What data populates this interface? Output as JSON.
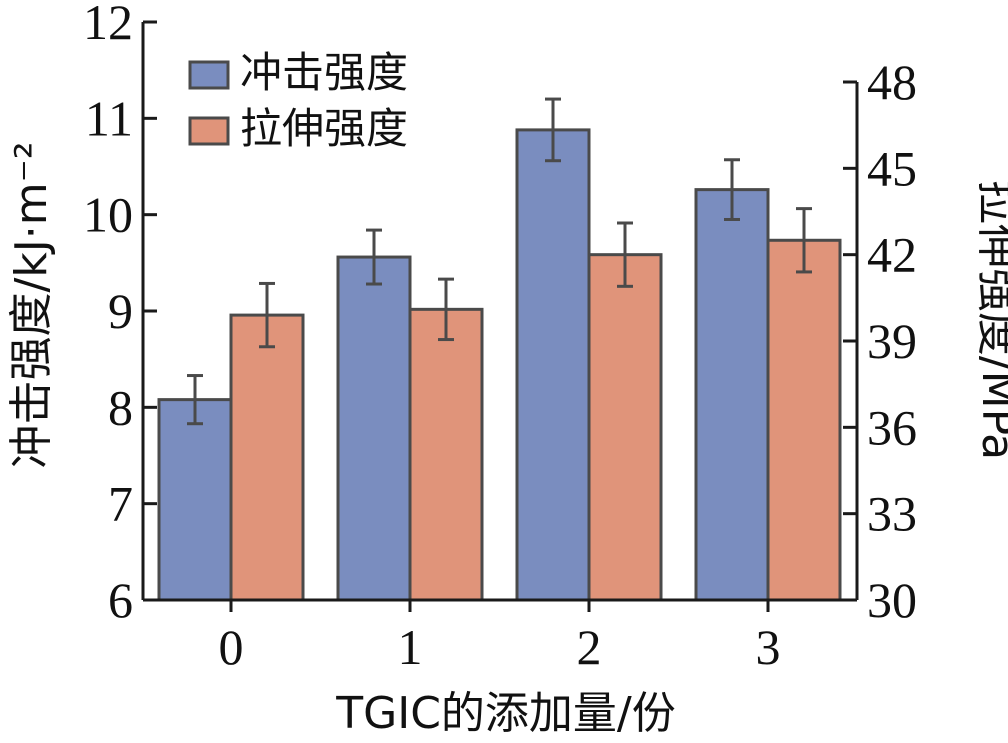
{
  "chart_data": {
    "type": "bar",
    "xlabel": "TGIC的添加量/份",
    "ylabel_left": "冲击强度/kJ·m⁻²",
    "ylabel_right": "拉伸强度/MPa",
    "categories": [
      "0",
      "1",
      "2",
      "3"
    ],
    "y_left_lim": [
      6,
      12
    ],
    "y_left_ticks": [
      "6",
      "7",
      "8",
      "9",
      "10",
      "11",
      "12"
    ],
    "y_right_lim": [
      30,
      48
    ],
    "y_right_ticks": [
      "30",
      "33",
      "36",
      "39",
      "42",
      "45",
      "48"
    ],
    "legend_position": "top-left",
    "grid": false,
    "series": [
      {
        "name": "冲击强度",
        "axis": "left",
        "color": "#7a8dbf",
        "values": [
          8.08,
          9.56,
          10.88,
          10.26
        ],
        "errors": [
          0.25,
          0.28,
          0.32,
          0.31
        ]
      },
      {
        "name": "拉伸强度",
        "axis": "right",
        "color": "#e0947a",
        "values": [
          39.9,
          40.1,
          42.0,
          42.5
        ],
        "errors": [
          1.1,
          1.05,
          1.1,
          1.1
        ]
      }
    ]
  }
}
